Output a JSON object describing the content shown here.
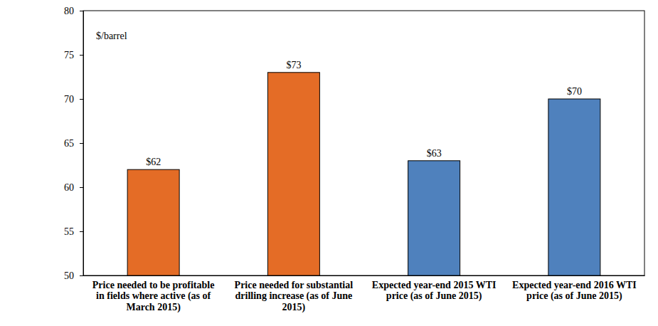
{
  "chart_data": {
    "type": "bar",
    "ylabel": "$/barrel",
    "categories": [
      "Price needed to be profitable in fields where active (as of March 2015)",
      "Price needed for substantial drilling increase (as of June 2015)",
      "Expected year-end 2015 WTI price (as of June 2015)",
      "Expected year-end 2016 WTI price (as of June 2015)"
    ],
    "values": [
      62,
      73,
      63,
      70
    ],
    "value_labels": [
      "$62",
      "$73",
      "$63",
      "$70"
    ],
    "colors": [
      "#e46c26",
      "#e46c26",
      "#4f81bd",
      "#4f81bd"
    ],
    "data_labels": true,
    "ylim": [
      50,
      80
    ],
    "yticks": [
      50,
      55,
      60,
      65,
      70,
      75,
      80
    ],
    "grid": false
  }
}
